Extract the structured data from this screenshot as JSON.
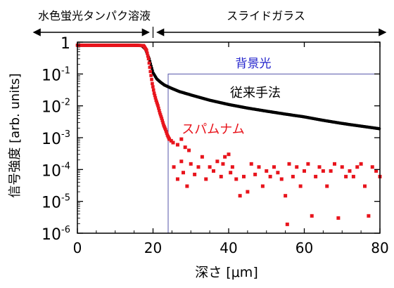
{
  "chart_data": {
    "type": "scatter",
    "xlabel": "深さ [μm]",
    "ylabel": "信号強度 [arb. units]",
    "xlim": [
      0,
      80
    ],
    "ylim": [
      1e-06,
      1
    ],
    "y_scale": "log",
    "x_ticks": [
      0,
      20,
      40,
      60,
      80
    ],
    "x_tick_labels": [
      "0",
      "20",
      "40",
      "60",
      "80"
    ],
    "y_ticks": [
      1,
      0.1,
      0.01,
      0.001,
      0.0001,
      1e-05,
      1e-06
    ],
    "y_tick_labels": [
      {
        "base": "1",
        "exp": ""
      },
      {
        "base": "10",
        "exp": "-1"
      },
      {
        "base": "10",
        "exp": "-2"
      },
      {
        "base": "10",
        "exp": "-3"
      },
      {
        "base": "10",
        "exp": "-4"
      },
      {
        "base": "10",
        "exp": "-5"
      },
      {
        "base": "10",
        "exp": "-6"
      }
    ],
    "region_labels": {
      "left": "水色蛍光タンパク溶液",
      "right": "スライドガラス",
      "boundary_x": 20
    },
    "background_box": {
      "label": "背景光",
      "x_range": [
        24,
        80
      ],
      "y_range": [
        1e-06,
        0.1
      ]
    },
    "series": [
      {
        "name": "従来手法",
        "color": "#000000",
        "plateau_value": 0.8,
        "points": [
          [
            0,
            0.8
          ],
          [
            5,
            0.8
          ],
          [
            10,
            0.8
          ],
          [
            15,
            0.8
          ],
          [
            17,
            0.78
          ],
          [
            18,
            0.6
          ],
          [
            19,
            0.3
          ],
          [
            19.5,
            0.18
          ],
          [
            20,
            0.11
          ],
          [
            21,
            0.07
          ],
          [
            22,
            0.055
          ],
          [
            23,
            0.045
          ],
          [
            25,
            0.035
          ],
          [
            27,
            0.028
          ],
          [
            30,
            0.022
          ],
          [
            35,
            0.015
          ],
          [
            40,
            0.011
          ],
          [
            45,
            0.0085
          ],
          [
            50,
            0.0068
          ],
          [
            55,
            0.0055
          ],
          [
            60,
            0.0045
          ],
          [
            65,
            0.0035
          ],
          [
            70,
            0.0028
          ],
          [
            75,
            0.0023
          ],
          [
            80,
            0.0019
          ]
        ]
      },
      {
        "name": "スパムナム",
        "color": "#e8141c",
        "plateau_value": 0.8,
        "points": [
          [
            0,
            0.8
          ],
          [
            5,
            0.8
          ],
          [
            10,
            0.8
          ],
          [
            15,
            0.8
          ],
          [
            17.5,
            0.78
          ],
          [
            18.3,
            0.55
          ],
          [
            18.8,
            0.3
          ],
          [
            19.3,
            0.12
          ],
          [
            19.8,
            0.05
          ],
          [
            20.3,
            0.025
          ],
          [
            20.8,
            0.015
          ],
          [
            21.3,
            0.01
          ],
          [
            21.8,
            0.006
          ],
          [
            22.3,
            0.004
          ],
          [
            22.8,
            0.0025
          ],
          [
            23.3,
            0.0018
          ],
          [
            23.8,
            0.0012
          ],
          [
            24.3,
            0.0009
          ],
          [
            24.8,
            0.0008
          ],
          [
            25.3,
            0.0007
          ],
          [
            26.5,
            0.0006
          ],
          [
            27.5,
            0.0009
          ],
          [
            28.5,
            0.0005
          ],
          [
            29.5,
            0.0004
          ],
          [
            25.5,
            0.00012
          ],
          [
            26.5,
            5e-05
          ],
          [
            27.5,
            0.00018
          ],
          [
            28,
            8e-05
          ],
          [
            29,
            3e-05
          ],
          [
            30,
            0.00015
          ],
          [
            31,
            7e-05
          ],
          [
            32,
            0.00012
          ],
          [
            33,
            0.00025
          ],
          [
            34,
            5e-05
          ],
          [
            35,
            0.00012
          ],
          [
            36,
            9e-05
          ],
          [
            37,
            0.00018
          ],
          [
            38,
            6e-05
          ],
          [
            38.5,
            0.00015
          ],
          [
            39,
            0.00025
          ],
          [
            40,
            0.0003
          ],
          [
            40.5,
            8e-05
          ],
          [
            41,
            0.00012
          ],
          [
            42,
            5e-05
          ],
          [
            43,
            1.5e-05
          ],
          [
            44,
            6e-05
          ],
          [
            45,
            2e-05
          ],
          [
            46,
            0.00015
          ],
          [
            47,
            7e-05
          ],
          [
            48,
            0.00012
          ],
          [
            49,
            3e-05
          ],
          [
            50,
            9e-05
          ],
          [
            51,
            6e-05
          ],
          [
            52,
            0.00012
          ],
          [
            53,
            8e-05
          ],
          [
            54,
            5e-05
          ],
          [
            55,
            1.5e-05
          ],
          [
            55.5,
            1.9e-06
          ],
          [
            56,
            0.00015
          ],
          [
            57,
            6e-05
          ],
          [
            58,
            0.00012
          ],
          [
            59,
            3e-05
          ],
          [
            60,
            9e-05
          ],
          [
            61,
            0.00015
          ],
          [
            62,
            3.5e-06
          ],
          [
            63,
            6e-05
          ],
          [
            64,
            0.00012
          ],
          [
            65,
            9e-05
          ],
          [
            66,
            3e-05
          ],
          [
            67,
            9e-05
          ],
          [
            68,
            0.00015
          ],
          [
            69,
            3e-06
          ],
          [
            70,
            0.00012
          ],
          [
            71,
            6e-05
          ],
          [
            72,
            9e-05
          ],
          [
            73,
            6e-05
          ],
          [
            74,
            0.00012
          ],
          [
            75,
            0.00015
          ],
          [
            76,
            3e-05
          ],
          [
            77,
            3.5e-06
          ],
          [
            78,
            0.00012
          ],
          [
            79,
            9e-05
          ],
          [
            80,
            6e-05
          ]
        ]
      }
    ]
  }
}
